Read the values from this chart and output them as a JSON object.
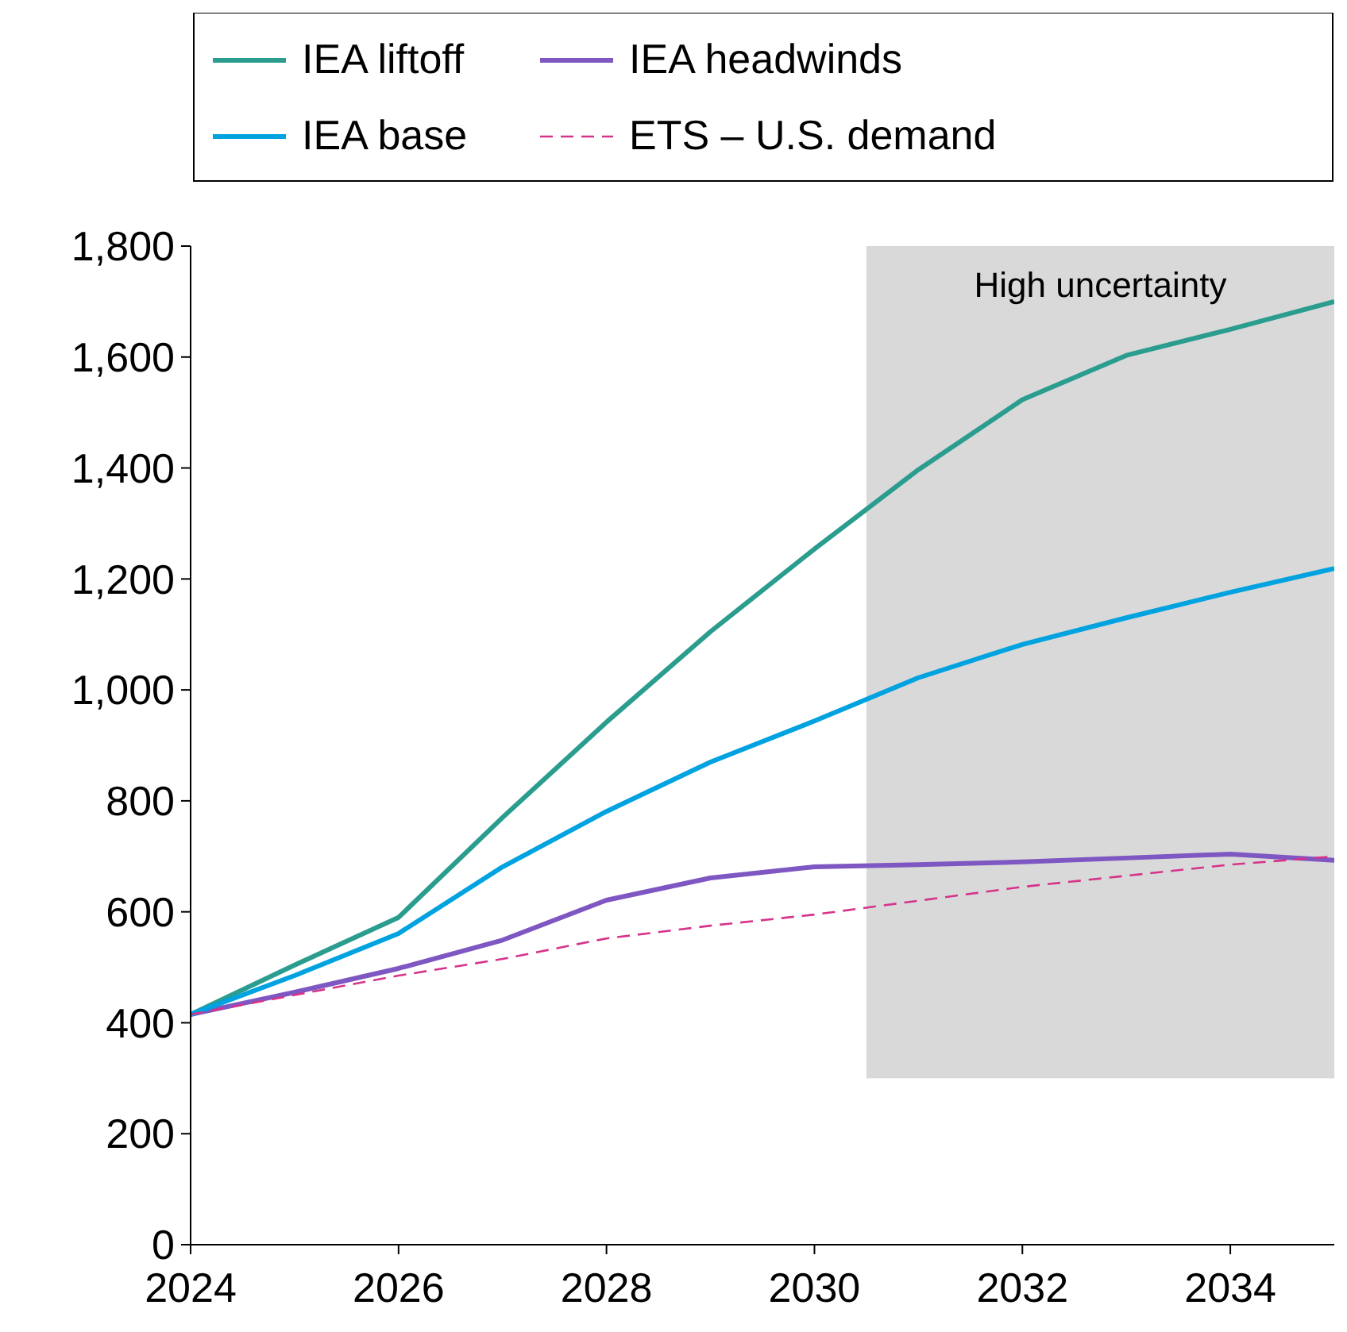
{
  "chart_data": {
    "type": "line",
    "x": [
      2024,
      2025,
      2026,
      2027,
      2028,
      2029,
      2030,
      2031,
      2032,
      2033,
      2034,
      2035
    ],
    "xlim": [
      2024,
      2035
    ],
    "xticks": [
      2024,
      2026,
      2028,
      2030,
      2032,
      2034
    ],
    "ylim": [
      0,
      1800
    ],
    "yticks": [
      {
        "value": 0,
        "label": "0"
      },
      {
        "value": 200,
        "label": "200"
      },
      {
        "value": 400,
        "label": "400"
      },
      {
        "value": 600,
        "label": "600"
      },
      {
        "value": 800,
        "label": "800"
      },
      {
        "value": 1000,
        "label": "1,000"
      },
      {
        "value": 1200,
        "label": "1,200"
      },
      {
        "value": 1400,
        "label": "1,400"
      },
      {
        "value": 1600,
        "label": "1,600"
      },
      {
        "value": 1800,
        "label": "1,800"
      }
    ],
    "grid": false,
    "legend": "top",
    "line_style": "solid",
    "bands": [
      {
        "axis": "x",
        "from": 2030.5,
        "to": 2035,
        "label": "High uncertainty",
        "color": "#d9d9d9"
      }
    ],
    "series": [
      {
        "name": "IEA liftoff",
        "color": "#2a9d8f",
        "values": [
          415,
          504,
          590,
          770,
          942,
          1105,
          1254,
          1397,
          1523,
          1603,
          1650,
          1700
        ]
      },
      {
        "name": "IEA headwinds",
        "color": "#7e57c2",
        "values": [
          415,
          455,
          498,
          549,
          621,
          661,
          681,
          685,
          690,
          697,
          704,
          693
        ]
      },
      {
        "name": "IEA base",
        "color": "#00a3e0",
        "values": [
          415,
          485,
          561,
          681,
          781,
          870,
          944,
          1022,
          1082,
          1130,
          1176,
          1219
        ]
      },
      {
        "name": "ETS – U.S. demand",
        "color": "#d6338a",
        "line_style": "dashed",
        "values": [
          415,
          450,
          485,
          515,
          552,
          575,
          595,
          620,
          645,
          665,
          685,
          700
        ]
      }
    ]
  }
}
